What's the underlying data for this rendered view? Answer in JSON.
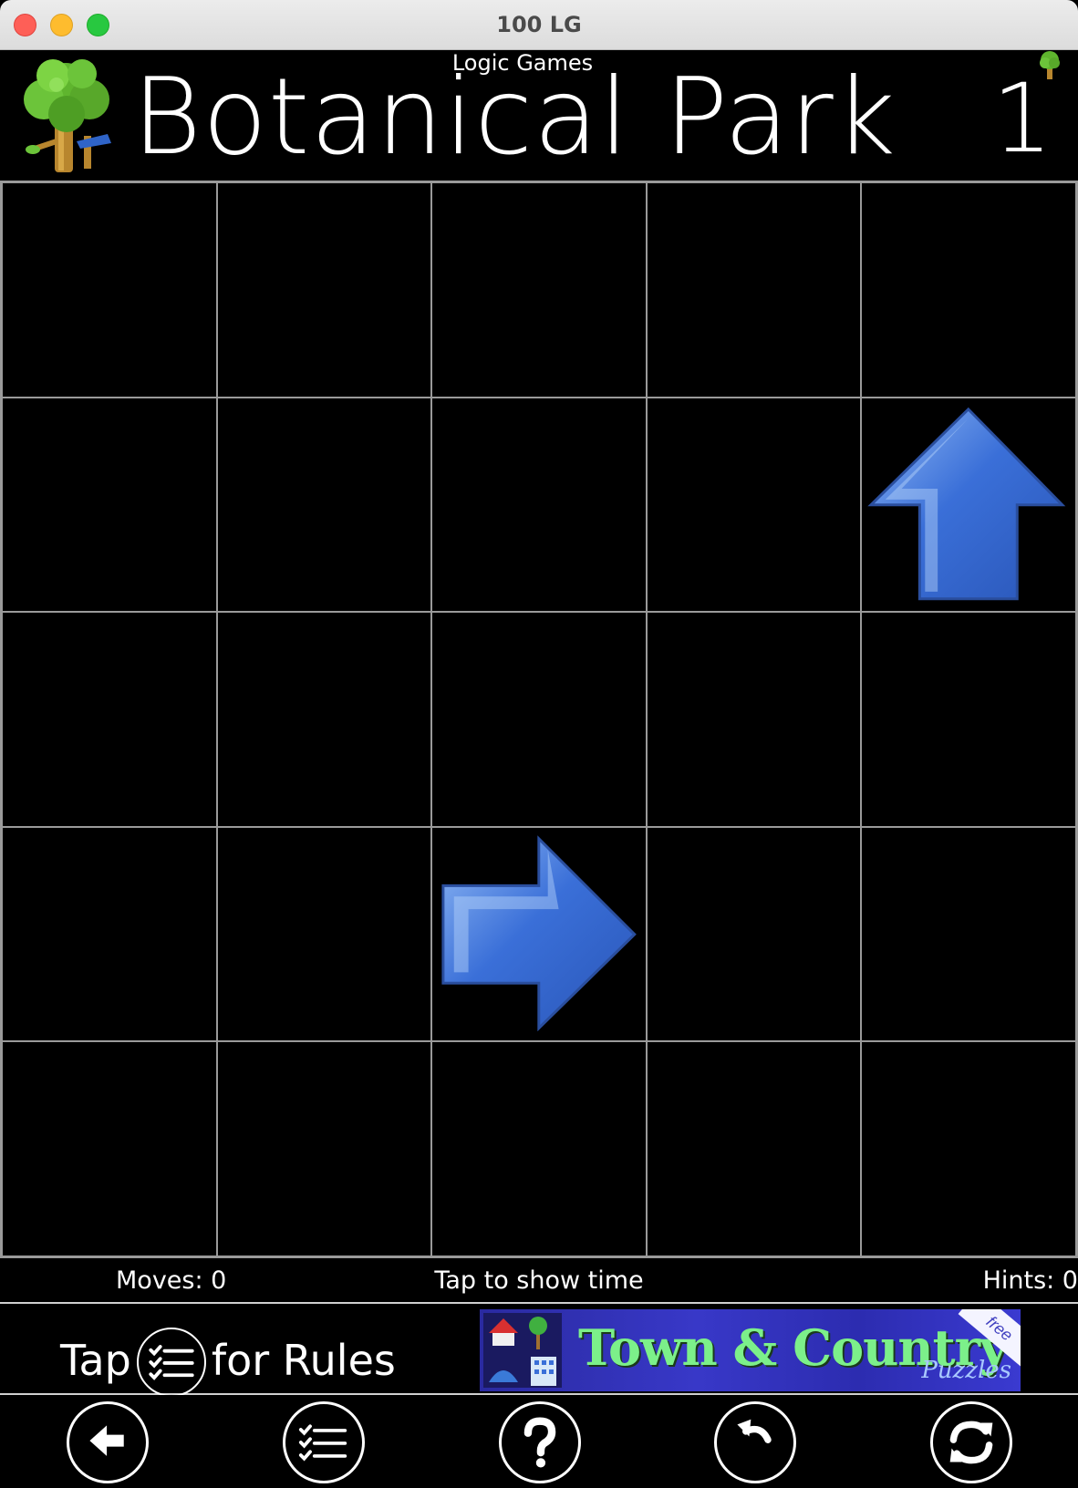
{
  "window": {
    "title": "100 LG"
  },
  "header": {
    "subtitle": "Logic Games",
    "title": "Botanical Park",
    "level": "1",
    "logo_icon": "tree-icon",
    "small_icon": "tree-icon"
  },
  "board": {
    "rows": 5,
    "cols": 5,
    "arrows": [
      {
        "row": 2,
        "col": 5,
        "direction": "up",
        "icon": "arrow-up-icon"
      },
      {
        "row": 4,
        "col": 3,
        "direction": "right",
        "icon": "arrow-right-icon"
      }
    ],
    "arrow_color": "#3a6fd8"
  },
  "status": {
    "moves": "Moves: 0",
    "time": "Tap to show time",
    "hints": "Hints: 0"
  },
  "rules_hint": {
    "before": "Tap",
    "after": "for Rules",
    "icon": "checklist-icon"
  },
  "ad": {
    "title": "Town & Country",
    "subtitle": "Puzzles",
    "badge": "free"
  },
  "toolbar": {
    "buttons": [
      {
        "name": "back-button",
        "icon": "arrow-left-icon"
      },
      {
        "name": "rules-button",
        "icon": "checklist-icon"
      },
      {
        "name": "help-button",
        "icon": "question-icon"
      },
      {
        "name": "undo-button",
        "icon": "undo-icon"
      },
      {
        "name": "restart-button",
        "icon": "refresh-icon"
      }
    ]
  }
}
